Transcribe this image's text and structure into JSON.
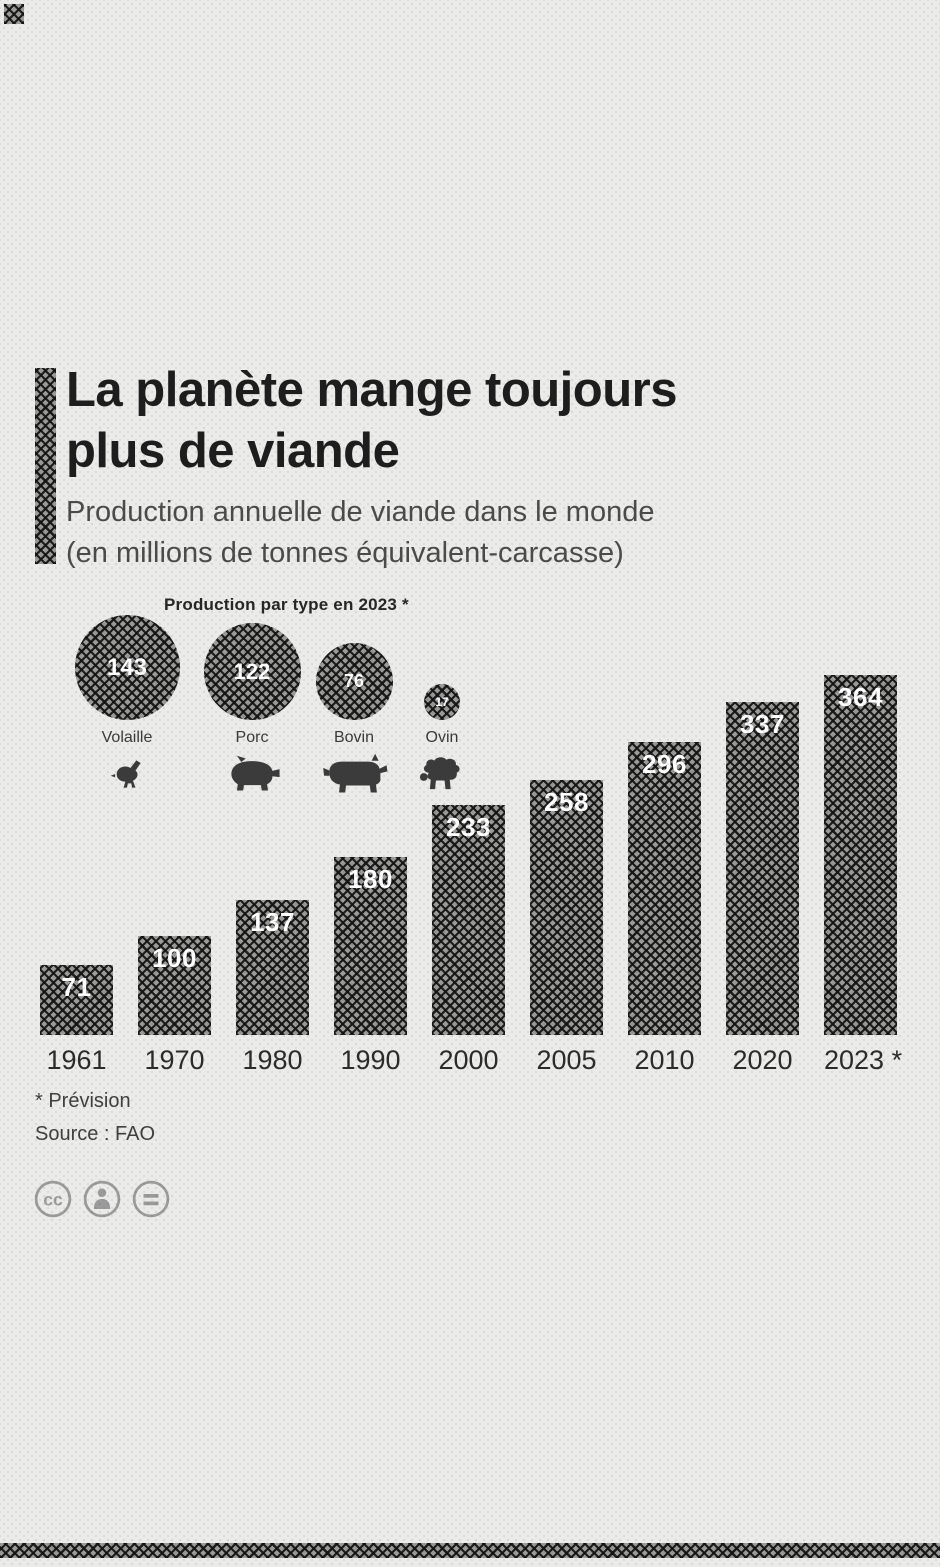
{
  "header": {
    "title_line1": "La planète mange toujours",
    "title_line2": "plus de viande",
    "subtitle_line1": "Production annuelle de viande dans le monde",
    "subtitle_line2": "(en millions de tonnes équivalent-carcasse)"
  },
  "type_section": {
    "title": "Production par type en 2023 *",
    "icons": [
      "chicken-icon",
      "pig-icon",
      "cow-icon",
      "sheep-icon"
    ]
  },
  "chart_data": [
    {
      "type": "bar",
      "title": "Production annuelle de viande dans le monde",
      "ylabel": "millions de tonnes équivalent-carcasse",
      "categories": [
        "1961",
        "1970",
        "1980",
        "1990",
        "2000",
        "2005",
        "2010",
        "2020",
        "2023 *"
      ],
      "values": [
        71,
        100,
        137,
        180,
        233,
        258,
        296,
        337,
        364
      ],
      "ylim": [
        0,
        380
      ],
      "grid": false,
      "legend": false,
      "bar_color": "#3d3d3d",
      "value_label_color": "#ffffff",
      "value_labels_inside_bar_top": true
    },
    {
      "type": "bubble",
      "title": "Production par type en 2023 *",
      "categories": [
        "Volaille",
        "Porc",
        "Bovin",
        "Ovin"
      ],
      "values": [
        143,
        122,
        76,
        17
      ],
      "note": "circle area proportional to value, white value label centered in each circle"
    }
  ],
  "footer": {
    "footnote": "* Prévision",
    "source": "Source : FAO",
    "license_icons": [
      "cc-icon",
      "cc-by-person-icon",
      "cc-nd-equals-icon"
    ]
  },
  "colors": {
    "background": "#ebebe9",
    "ink": "#1d1d1d",
    "subtitle_gray": "#4b4b4b",
    "bar_fill": "#3d3d3d",
    "value_text": "#ffffff",
    "license_gray": "#9b9b9b"
  }
}
